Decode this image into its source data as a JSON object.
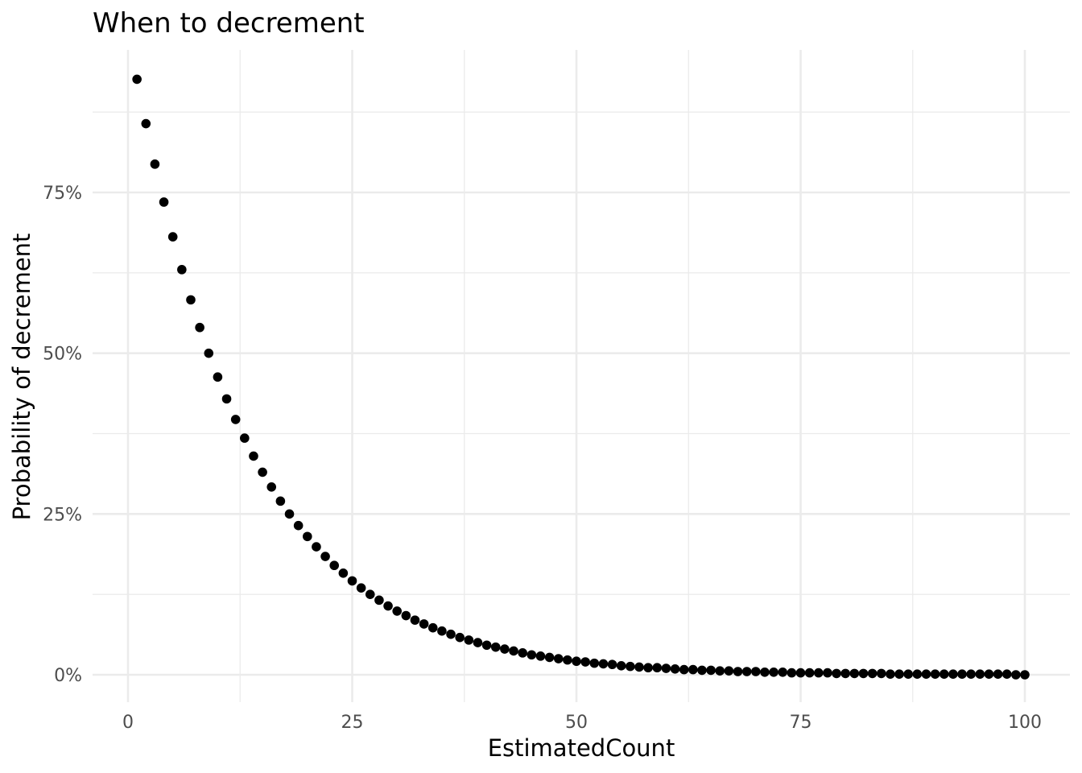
{
  "chart_data": {
    "type": "scatter",
    "title": "When to decrement",
    "xlabel": "EstimatedCount",
    "ylabel": "Probability of decrement",
    "xlim": [
      -2,
      105
    ],
    "ylim": [
      -0.035,
      0.975
    ],
    "x_ticks": [
      0,
      25,
      50,
      75,
      100
    ],
    "x_tick_labels": [
      "0",
      "25",
      "50",
      "75",
      "100"
    ],
    "y_ticks": [
      0,
      0.25,
      0.5,
      0.75
    ],
    "y_tick_labels": [
      "0%",
      "25%",
      "50%",
      "75%"
    ],
    "grid": true,
    "point_color": "#000000",
    "x": [
      1,
      2,
      3,
      4,
      5,
      6,
      7,
      8,
      9,
      10,
      11,
      12,
      13,
      14,
      15,
      16,
      17,
      18,
      19,
      20,
      21,
      22,
      23,
      24,
      25,
      26,
      27,
      28,
      29,
      30,
      31,
      32,
      33,
      34,
      35,
      36,
      37,
      38,
      39,
      40,
      41,
      42,
      43,
      44,
      45,
      46,
      47,
      48,
      49,
      50,
      51,
      52,
      53,
      54,
      55,
      56,
      57,
      58,
      59,
      60,
      61,
      62,
      63,
      64,
      65,
      66,
      67,
      68,
      69,
      70,
      71,
      72,
      73,
      74,
      75,
      76,
      77,
      78,
      79,
      80,
      81,
      82,
      83,
      84,
      85,
      86,
      87,
      88,
      89,
      90,
      91,
      92,
      93,
      94,
      95,
      96,
      97,
      98,
      99,
      100
    ],
    "y": [
      0.926,
      0.857,
      0.794,
      0.735,
      0.681,
      0.63,
      0.583,
      0.54,
      0.5,
      0.463,
      0.429,
      0.397,
      0.368,
      0.34,
      0.315,
      0.292,
      0.27,
      0.25,
      0.232,
      0.215,
      0.199,
      0.184,
      0.17,
      0.158,
      0.146,
      0.135,
      0.125,
      0.116,
      0.107,
      0.099,
      0.092,
      0.085,
      0.079,
      0.073,
      0.068,
      0.063,
      0.058,
      0.054,
      0.05,
      0.046,
      0.043,
      0.04,
      0.037,
      0.034,
      0.031,
      0.029,
      0.027,
      0.025,
      0.023,
      0.021,
      0.02,
      0.018,
      0.017,
      0.016,
      0.014,
      0.013,
      0.012,
      0.011,
      0.011,
      0.01,
      0.009,
      0.008,
      0.008,
      0.007,
      0.007,
      0.006,
      0.006,
      0.005,
      0.005,
      0.005,
      0.004,
      0.004,
      0.004,
      0.003,
      0.003,
      0.003,
      0.003,
      0.003,
      0.002,
      0.002,
      0.002,
      0.002,
      0.002,
      0.002,
      0.001,
      0.001,
      0.001,
      0.001,
      0.001,
      0.001,
      0.001,
      0.001,
      0.001,
      0.001,
      0.001,
      0.001,
      0.001,
      0.001,
      0,
      0
    ]
  }
}
